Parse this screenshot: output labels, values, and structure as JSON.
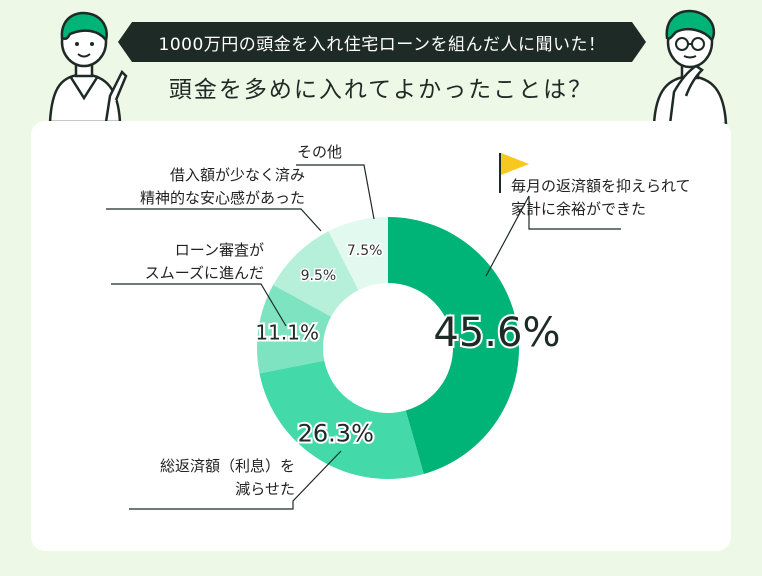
{
  "header": {
    "banner_text": "1000万円の頭金を入れ住宅ローンを組んだ人に聞いた！",
    "question": "頭金を多めに入れてよかったことは？"
  },
  "chart_data": {
    "type": "pie",
    "donut": true,
    "categories": [
      "毎月の返済額を抑えられて家計に余裕ができた",
      "総返済額（利息）を減らせた",
      "ローン審査がスムーズに進んだ",
      "借入額が少なく済み精神的な安心感があった",
      "その他"
    ],
    "values": [
      45.6,
      26.3,
      11.1,
      9.5,
      7.5
    ],
    "value_labels": [
      "45.6%",
      "26.3%",
      "11.1%",
      "9.5%",
      "7.5%"
    ],
    "label_lines": [
      [
        "毎月の返済額を抑えられて",
        "家計に余裕ができた"
      ],
      [
        "総返済額（利息）を",
        "減らせた"
      ],
      [
        "ローン審査が",
        "スムーズに進んだ"
      ],
      [
        "借入額が少なく済み",
        "精神的な安心感があった"
      ],
      [
        "その他"
      ]
    ],
    "colors": [
      "#00b377",
      "#43d9a8",
      "#7ee3c1",
      "#b6f0da",
      "#e2f9ef"
    ],
    "start_angle_deg": 0,
    "direction": "clockwise"
  },
  "icons": {
    "flag": "flag-icon",
    "left_person": "pointing-person-icon",
    "right_person": "thinking-person-icon"
  }
}
